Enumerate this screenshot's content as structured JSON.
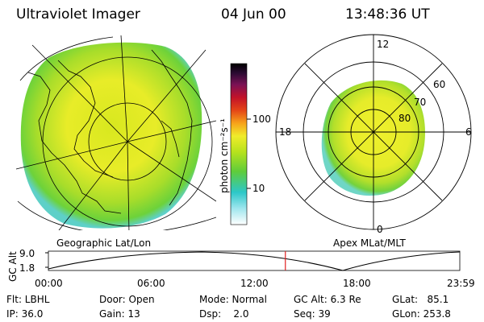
{
  "header": {
    "title": "Ultraviolet Imager",
    "date": "04 Jun 00",
    "time": "13:48:36 UT"
  },
  "left_panel": {
    "caption": "Geographic Lat/Lon"
  },
  "right_panel": {
    "caption": "Apex MLat/MLT",
    "mlt_labels": [
      "12",
      "18",
      "6",
      "0"
    ],
    "mlat_labels": [
      "60",
      "70",
      "80"
    ]
  },
  "colorbar": {
    "label": "photon cm⁻²s⁻¹",
    "ticks": [
      "100",
      "10"
    ],
    "scale": "log",
    "colors": [
      "#ffffff",
      "#9fe6ee",
      "#2cc7c8",
      "#5fcc3a",
      "#b6e21d",
      "#f0ec2a",
      "#f7a21a",
      "#e44517",
      "#c21229",
      "#7a1255",
      "#2c0b33",
      "#000000"
    ]
  },
  "timeline": {
    "ylabel": "GC Alt",
    "yticks": [
      "9.0",
      "1.8"
    ],
    "xticks": [
      "00:00",
      "06:00",
      "12:00",
      "18:00",
      "23:59"
    ],
    "current_time_fraction": 0.576,
    "current_marker_color": "#e02020"
  },
  "info": {
    "col1": [
      "Flt: LBHL",
      "IP: 36.0"
    ],
    "col2": [
      "Door: Open",
      "Gain: 13"
    ],
    "col3": [
      "Mode: Normal",
      "Dsp:    2.0"
    ],
    "col4": [
      "GC Alt: 6.3 Re",
      "Seq: 39"
    ],
    "col5": [
      "GLat:   85.1",
      "GLon: 253.8"
    ]
  }
}
